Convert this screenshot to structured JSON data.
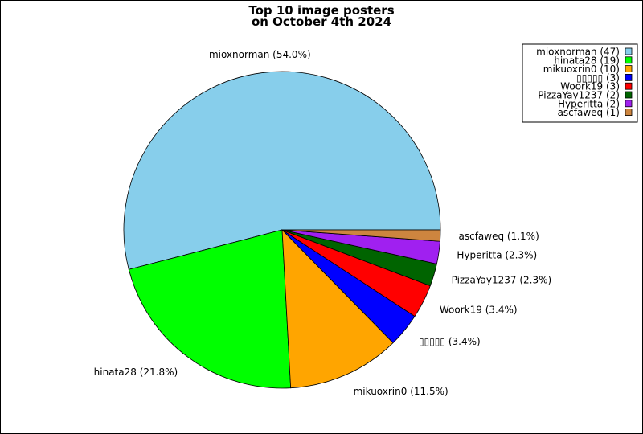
{
  "chart_data": {
    "type": "pie",
    "title": "Top 10 image posters",
    "subtitle": "on October 4th 2024",
    "legend_placement": "top-right",
    "slices": [
      {
        "name": "mioxnorman",
        "count": 47,
        "percent": 54.0,
        "label": "mioxnorman (54.0%)",
        "legend": "mioxnorman (47)",
        "color": "#87CEEB"
      },
      {
        "name": "hinata28",
        "count": 19,
        "percent": 21.8,
        "label": "hinata28 (21.8%)",
        "legend": "hinata28 (19)",
        "color": "#00FF00"
      },
      {
        "name": "mikuoxrin0",
        "count": 10,
        "percent": 11.5,
        "label": "mikuoxrin0 (11.5%)",
        "legend": "mikuoxrin0 (10)",
        "color": "#FFA500"
      },
      {
        "name": "▯▯▯▯▯",
        "count": 3,
        "percent": 3.4,
        "label": "▯▯▯▯▯ (3.4%)",
        "legend": "▯▯▯▯▯ (3)",
        "color": "#0000FF"
      },
      {
        "name": "Woork19",
        "count": 3,
        "percent": 3.4,
        "label": "Woork19 (3.4%)",
        "legend": "Woork19 (3)",
        "color": "#FF0000"
      },
      {
        "name": "PizzaYay1237",
        "count": 2,
        "percent": 2.3,
        "label": "PizzaYay1237 (2.3%)",
        "legend": "PizzaYay1237 (2)",
        "color": "#006400"
      },
      {
        "name": "Hyperitta",
        "count": 2,
        "percent": 2.3,
        "label": "Hyperitta (2.3%)",
        "legend": "Hyperitta (2)",
        "color": "#A020F0"
      },
      {
        "name": "ascfaweq",
        "count": 1,
        "percent": 1.1,
        "label": "ascfaweq (1.1%)",
        "legend": "ascfaweq (1)",
        "color": "#CD853F"
      }
    ]
  }
}
